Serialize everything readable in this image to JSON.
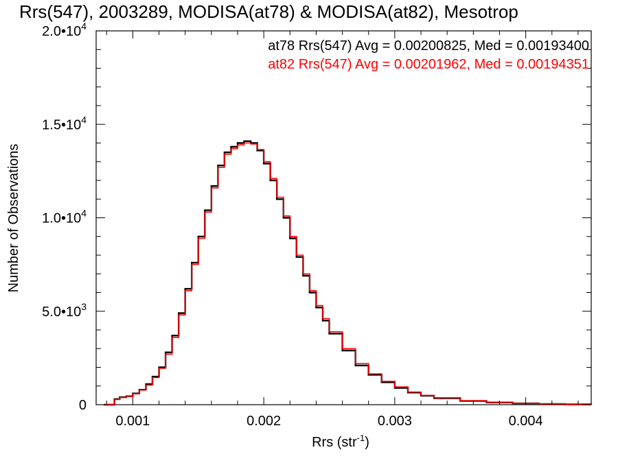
{
  "chart_data": {
    "type": "line",
    "title": "Rrs(547), 2003289, MODISA(at78) & MODISA(at82), Mesotrop",
    "xlabel": "Rrs (str",
    "xlabel_sup": "-1",
    "xlabel_close": ")",
    "ylabel": "Number of Observations",
    "xlim": [
      0.00072,
      0.0045
    ],
    "ylim": [
      0,
      20000
    ],
    "x_ticks": [
      {
        "value": 0.001,
        "label": "0.001"
      },
      {
        "value": 0.002,
        "label": "0.002"
      },
      {
        "value": 0.003,
        "label": "0.003"
      },
      {
        "value": 0.004,
        "label": "0.004"
      }
    ],
    "y_ticks": [
      {
        "value": 0,
        "mantissa": "0",
        "exp": ""
      },
      {
        "value": 5000,
        "mantissa": "5.0•10",
        "exp": "3"
      },
      {
        "value": 10000,
        "mantissa": "1.0•10",
        "exp": "4"
      },
      {
        "value": 15000,
        "mantissa": "1.5•10",
        "exp": "4"
      },
      {
        "value": 20000,
        "mantissa": "2.0•10",
        "exp": "4"
      }
    ],
    "legend": [
      {
        "text": "at78 Rrs(547) Avg = 0.00200825, Med = 0.00193400",
        "color": "#000000"
      },
      {
        "text": "at82 Rrs(547) Avg = 0.00201962, Med = 0.00194351",
        "color": "#ff0000"
      }
    ],
    "legend_position": "top-right",
    "grid": false,
    "series": [
      {
        "name": "at78",
        "color": "#000000",
        "x": [
          0.00078,
          0.00082,
          0.00086,
          0.0009,
          0.00095,
          0.001,
          0.00105,
          0.0011,
          0.00115,
          0.0012,
          0.00125,
          0.0013,
          0.00135,
          0.0014,
          0.00145,
          0.0015,
          0.00155,
          0.0016,
          0.00165,
          0.0017,
          0.00175,
          0.0018,
          0.00185,
          0.0019,
          0.00195,
          0.002,
          0.00205,
          0.0021,
          0.00215,
          0.0022,
          0.00225,
          0.0023,
          0.00235,
          0.0024,
          0.00245,
          0.0025,
          0.0026,
          0.0027,
          0.0028,
          0.0029,
          0.003,
          0.0031,
          0.0032,
          0.0033,
          0.0035,
          0.0037,
          0.0039,
          0.0041,
          0.0043,
          0.0045
        ],
        "y": [
          0,
          0,
          300,
          400,
          450,
          600,
          800,
          1100,
          1500,
          2000,
          2800,
          3700,
          4900,
          6200,
          7600,
          9000,
          10400,
          11700,
          12800,
          13500,
          13800,
          14000,
          14100,
          14000,
          13600,
          12900,
          12000,
          11000,
          10000,
          8900,
          7900,
          6900,
          6000,
          5200,
          4500,
          3800,
          2900,
          2100,
          1600,
          1200,
          900,
          650,
          480,
          350,
          200,
          120,
          70,
          40,
          20,
          10
        ]
      },
      {
        "name": "at82",
        "color": "#ff0000",
        "x": [
          0.00078,
          0.00082,
          0.00086,
          0.0009,
          0.00095,
          0.001,
          0.00105,
          0.0011,
          0.00115,
          0.0012,
          0.00125,
          0.0013,
          0.00135,
          0.0014,
          0.00145,
          0.0015,
          0.00155,
          0.0016,
          0.00165,
          0.0017,
          0.00175,
          0.0018,
          0.00185,
          0.0019,
          0.00195,
          0.002,
          0.00205,
          0.0021,
          0.00215,
          0.0022,
          0.00225,
          0.0023,
          0.00235,
          0.0024,
          0.00245,
          0.0025,
          0.0026,
          0.0027,
          0.0028,
          0.0029,
          0.003,
          0.0031,
          0.0032,
          0.0033,
          0.0035,
          0.0037,
          0.0039,
          0.0041,
          0.0043,
          0.0045
        ],
        "y": [
          0,
          0,
          280,
          380,
          440,
          580,
          780,
          1050,
          1450,
          1950,
          2700,
          3600,
          4800,
          6100,
          7500,
          8900,
          10300,
          11600,
          12700,
          13400,
          13700,
          13900,
          14000,
          13950,
          13650,
          13000,
          12100,
          11100,
          10100,
          9000,
          8000,
          7000,
          6100,
          5300,
          4600,
          3900,
          3000,
          2200,
          1650,
          1250,
          950,
          680,
          500,
          370,
          210,
          130,
          75,
          45,
          22,
          12
        ]
      }
    ]
  }
}
